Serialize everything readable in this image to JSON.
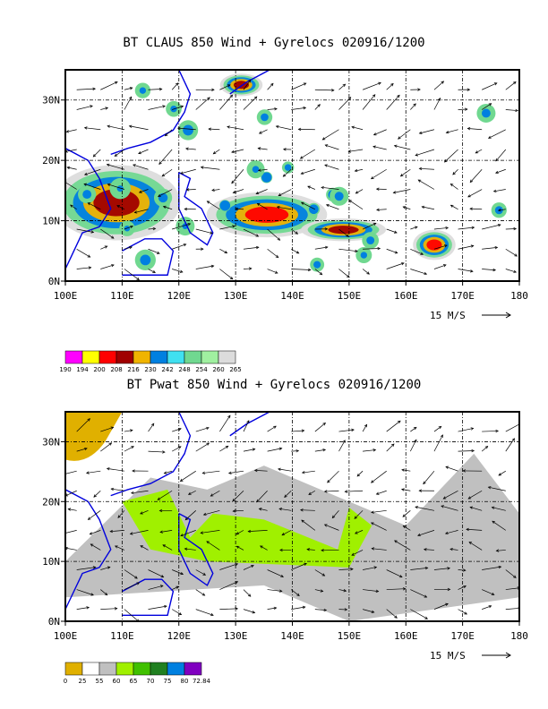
{
  "chart_data": [
    {
      "type": "heatmap",
      "title": "BT CLAUS 850 Wind + Gyrelocs 020916/1200",
      "x_ticks": [
        "100E",
        "110E",
        "120E",
        "130E",
        "140E",
        "150E",
        "160E",
        "170E",
        "180"
      ],
      "y_ticks": [
        "0N",
        "10N",
        "20N",
        "30N"
      ],
      "xlim": [
        100,
        180
      ],
      "ylim": [
        0,
        35
      ],
      "grid": true,
      "vector_reference": "15 M/S",
      "colorbar_labels": [
        "190",
        "194",
        "200",
        "208",
        "216",
        "230",
        "242",
        "248",
        "254",
        "260",
        "265"
      ],
      "colorbar_colors": [
        "#ff00ff",
        "#ffff00",
        "#ff0000",
        "#a00000",
        "#f0b400",
        "#0080e0",
        "#40e0f0",
        "#70d890",
        "#a0f0a0",
        "#dcdcdc"
      ],
      "cold_cloud_regions": [
        {
          "lon": [
            100,
            118
          ],
          "lat": [
            8,
            18
          ],
          "level": "208"
        },
        {
          "lon": [
            127,
            144
          ],
          "lat": [
            8,
            14
          ],
          "level": "200"
        },
        {
          "lon": [
            143,
            155
          ],
          "lat": [
            7,
            10
          ],
          "level": "208"
        },
        {
          "lon": [
            162,
            168
          ],
          "lat": [
            4,
            8
          ],
          "level": "200"
        },
        {
          "lon": [
            128,
            134
          ],
          "lat": [
            31,
            34
          ],
          "level": "208"
        }
      ]
    },
    {
      "type": "heatmap",
      "title": "BT Pwat 850 Wind + Gyrelocs 020916/1200",
      "x_ticks": [
        "100E",
        "110E",
        "120E",
        "130E",
        "140E",
        "150E",
        "160E",
        "170E",
        "180"
      ],
      "y_ticks": [
        "0N",
        "10N",
        "20N",
        "30N"
      ],
      "xlim": [
        100,
        180
      ],
      "ylim": [
        0,
        35
      ],
      "grid": true,
      "vector_reference": "15 M/S",
      "colorbar_labels": [
        "0",
        "25",
        "55",
        "60",
        "65",
        "70",
        "75",
        "80",
        "72.84"
      ],
      "colorbar_colors": [
        "#e0b000",
        "#ffffff",
        "#c0c0c0",
        "#a0f000",
        "#40c000",
        "#208020",
        "#0080e0",
        "#8000c0"
      ],
      "precipitable_water_regions": [
        {
          "lon": [
            100,
            110
          ],
          "lat": [
            28,
            35
          ],
          "level": "0-25"
        },
        {
          "lon": [
            100,
            180
          ],
          "lat": [
            2,
            25
          ],
          "level": "55-60"
        },
        {
          "lon": [
            110,
            150
          ],
          "lat": [
            9,
            22
          ],
          "level": "60-65"
        }
      ]
    }
  ]
}
